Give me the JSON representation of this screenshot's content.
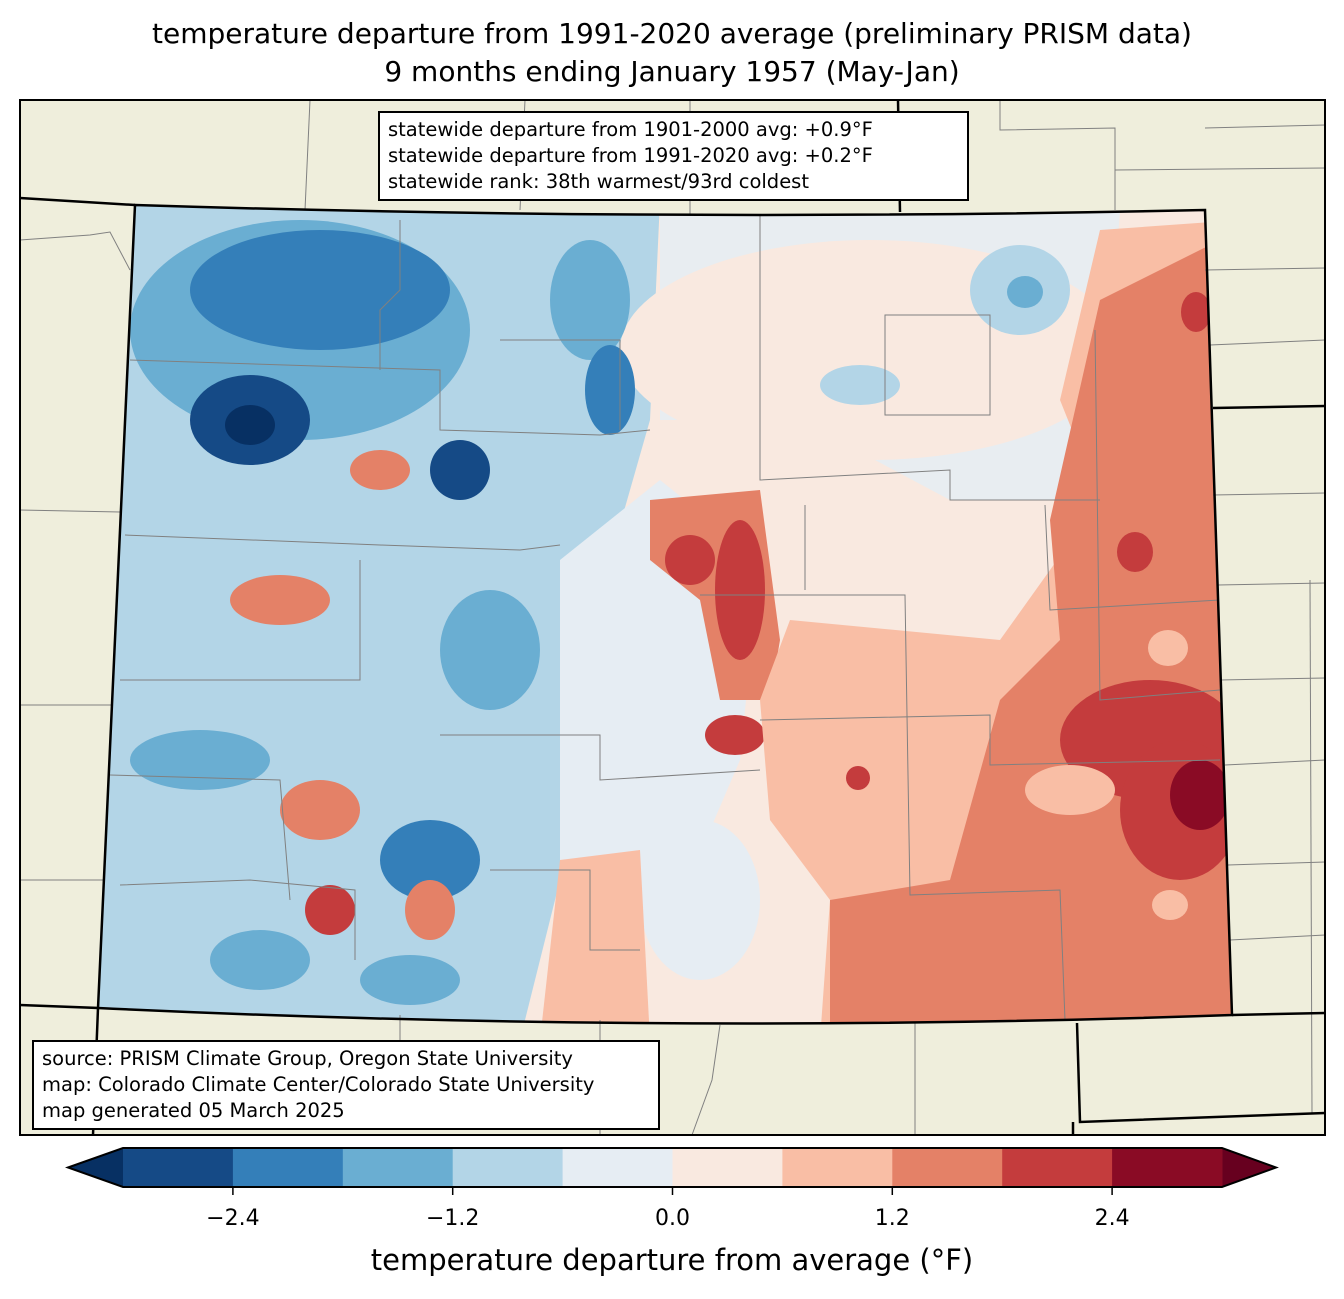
{
  "title": {
    "line1": "temperature departure from 1991-2020 average (preliminary PRISM data)",
    "line2": "9 months ending January 1957 (May-Jan)"
  },
  "info": [
    "statewide departure from 1901-2000 avg: +0.9°F",
    "statewide departure from 1991-2020 avg: +0.2°F",
    "statewide rank: 38th warmest/93rd coldest"
  ],
  "source": [
    "source: PRISM Climate Group, Oregon State University",
    "map: Colorado Climate Center/Colorado State University",
    "map generated 05 March 2025"
  ],
  "colorbar": {
    "label": "temperature departure from average (°F)",
    "ticks": [
      "−2.4",
      "−1.2",
      "0.0",
      "1.2",
      "2.4"
    ],
    "tick_values": [
      -2.4,
      -1.2,
      0.0,
      1.2,
      2.4
    ],
    "bounds": [
      -3.0,
      3.0
    ],
    "step": 0.6,
    "under_color": "#073063",
    "over_color": "#67001f",
    "colors": [
      "#154a86",
      "#347fb9",
      "#6aaed2",
      "#b3d5e7",
      "#e6edf3",
      "#f9e9e0",
      "#f9bea5",
      "#e48167",
      "#c43c3d",
      "#8a0b25"
    ]
  },
  "map": {
    "land_color": "#efeedc",
    "border_color": "#000000",
    "county_color": "#808080"
  }
}
